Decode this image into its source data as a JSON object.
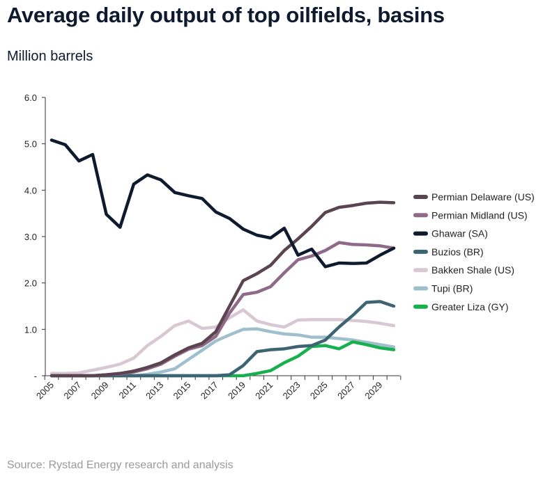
{
  "chart_data": {
    "type": "line",
    "title": "Average daily output of top oilfields, basins",
    "ylabel": "Million barrels",
    "source": "Source: Rystad Energy research and analysis",
    "ylim": [
      0,
      6
    ],
    "yticks": [
      {
        "value": 0,
        "label": "-"
      },
      {
        "value": 1,
        "label": "1.0"
      },
      {
        "value": 2,
        "label": "2.0"
      },
      {
        "value": 3,
        "label": "3.0"
      },
      {
        "value": 4,
        "label": "4.0"
      },
      {
        "value": 5,
        "label": "5.0"
      },
      {
        "value": 6,
        "label": "6.0"
      }
    ],
    "xtick_labels": [
      "2005",
      "2007",
      "2009",
      "2011",
      "2013",
      "2015",
      "2017",
      "2019",
      "2021",
      "2023",
      "2025",
      "2027",
      "2029"
    ],
    "grid": false,
    "legend_position": "right",
    "x": [
      2005,
      2006,
      2007,
      2008,
      2009,
      2010,
      2011,
      2012,
      2013,
      2014,
      2015,
      2016,
      2017,
      2018,
      2019,
      2020,
      2021,
      2022,
      2023,
      2024,
      2025,
      2026,
      2027,
      2028,
      2029,
      2030
    ],
    "series": [
      {
        "name": "Permian Delaware (US)",
        "color": "#5a4450",
        "values": [
          0,
          0,
          0,
          0,
          0.02,
          0.05,
          0.1,
          0.18,
          0.28,
          0.45,
          0.6,
          0.7,
          0.95,
          1.5,
          2.05,
          2.2,
          2.38,
          2.7,
          2.95,
          3.22,
          3.52,
          3.63,
          3.67,
          3.72,
          3.74,
          3.73
        ]
      },
      {
        "name": "Permian Midland (US)",
        "color": "#8f6a88",
        "values": [
          0,
          0,
          0,
          0,
          0.02,
          0.04,
          0.08,
          0.15,
          0.25,
          0.42,
          0.57,
          0.65,
          0.85,
          1.35,
          1.75,
          1.8,
          1.92,
          2.22,
          2.5,
          2.58,
          2.7,
          2.87,
          2.83,
          2.82,
          2.8,
          2.75
        ]
      },
      {
        "name": "Ghawar (SA)",
        "color": "#0e1a2e",
        "values": [
          5.08,
          4.98,
          4.63,
          4.77,
          3.48,
          3.2,
          4.13,
          4.33,
          4.22,
          3.95,
          3.88,
          3.82,
          3.53,
          3.39,
          3.16,
          3.03,
          2.97,
          3.18,
          2.6,
          2.73,
          2.35,
          2.43,
          2.42,
          2.43,
          2.6,
          2.75
        ]
      },
      {
        "name": "Buzios (BR)",
        "color": "#3e6474",
        "values": [
          0,
          0,
          0,
          0,
          0,
          0,
          0,
          0,
          0,
          0,
          0,
          0,
          0,
          0.02,
          0.22,
          0.52,
          0.56,
          0.58,
          0.63,
          0.65,
          0.77,
          1.05,
          1.3,
          1.58,
          1.6,
          1.5
        ]
      },
      {
        "name": "Bakken Shale (US)",
        "color": "#d8c8d4",
        "values": [
          0.05,
          0.05,
          0.06,
          0.12,
          0.18,
          0.25,
          0.38,
          0.65,
          0.85,
          1.08,
          1.18,
          1.02,
          1.05,
          1.25,
          1.42,
          1.18,
          1.1,
          1.05,
          1.2,
          1.21,
          1.21,
          1.21,
          1.19,
          1.17,
          1.13,
          1.08
        ]
      },
      {
        "name": "Tupi (BR)",
        "color": "#9fbfcc",
        "values": [
          0,
          0,
          0,
          0,
          0,
          0,
          0,
          0.03,
          0.08,
          0.15,
          0.35,
          0.55,
          0.75,
          0.88,
          1.0,
          1.01,
          0.95,
          0.9,
          0.88,
          0.83,
          0.83,
          0.8,
          0.77,
          0.72,
          0.67,
          0.62
        ]
      },
      {
        "name": "Greater Liza (GY)",
        "color": "#18b04f",
        "values": [
          0,
          0,
          0,
          0,
          0,
          0,
          0,
          0,
          0,
          0,
          0,
          0,
          0,
          0,
          0,
          0.05,
          0.11,
          0.28,
          0.42,
          0.63,
          0.65,
          0.58,
          0.73,
          0.67,
          0.6,
          0.56
        ]
      }
    ]
  }
}
